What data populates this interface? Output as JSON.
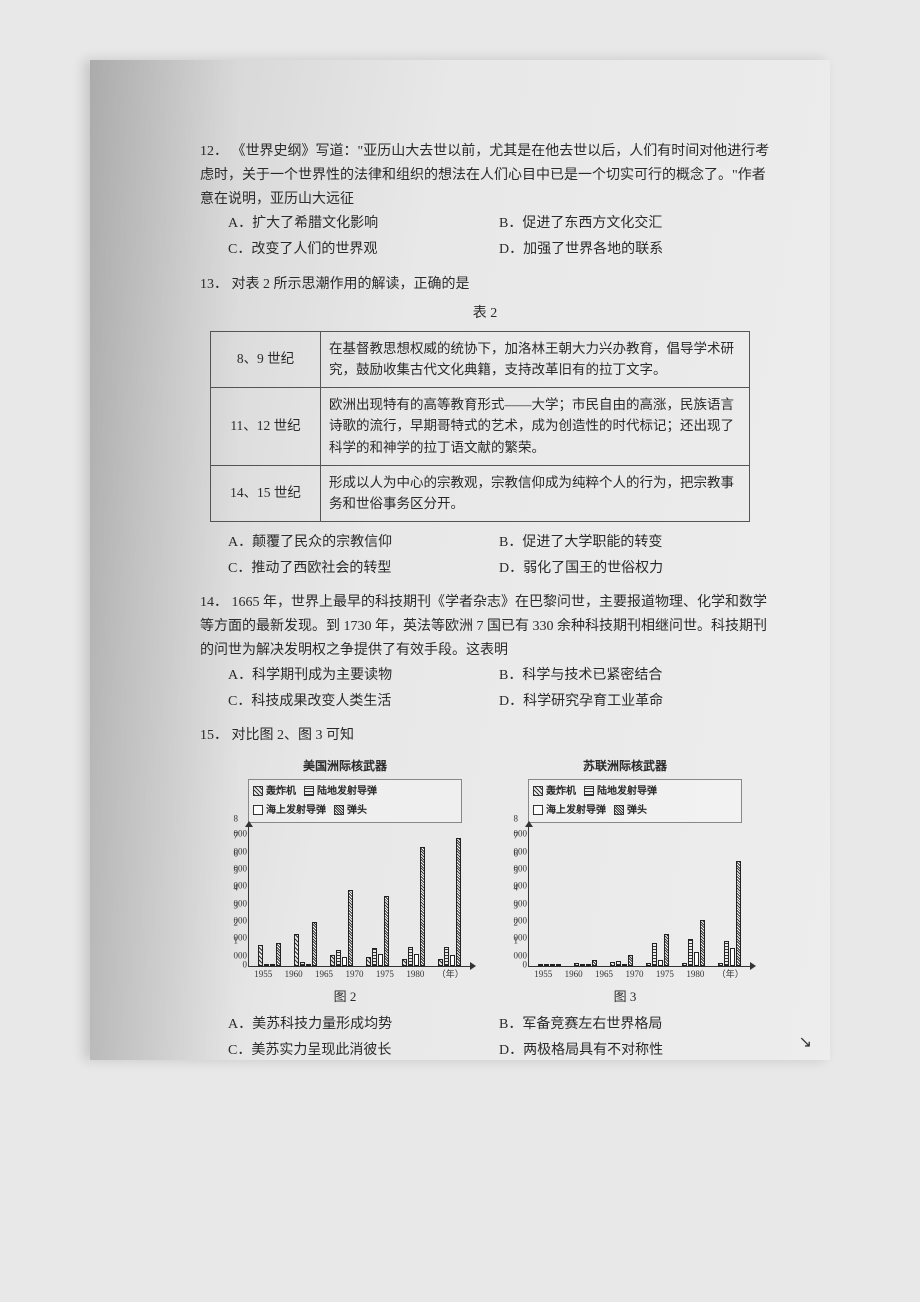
{
  "q12": {
    "num": "12．",
    "stem": "《世界史纲》写道：\"亚历山大去世以前，尤其是在他去世以后，人们有时间对他进行考虑时，关于一个世界性的法律和组织的想法在人们心目中已是一个切实可行的概念了。\"作者意在说明，亚历山大远征",
    "A": "A．扩大了希腊文化影响",
    "B": "B．促进了东西方文化交汇",
    "C": "C．改变了人们的世界观",
    "D": "D．加强了世界各地的联系"
  },
  "q13": {
    "num": "13．",
    "stem": "对表 2 所示思潮作用的解读，正确的是",
    "table_title": "表 2",
    "rows": [
      {
        "period": "8、9 世纪",
        "desc": "在基督教思想权威的统协下，加洛林王朝大力兴办教育，倡导学术研究，鼓励收集古代文化典籍，支持改革旧有的拉丁文字。"
      },
      {
        "period": "11、12 世纪",
        "desc": "欧洲出现特有的高等教育形式——大学；市民自由的高涨，民族语言诗歌的流行，早期哥特式的艺术，成为创造性的时代标记；还出现了科学的和神学的拉丁语文献的繁荣。"
      },
      {
        "period": "14、15 世纪",
        "desc": "形成以人为中心的宗教观，宗教信仰成为纯粹个人的行为，把宗教事务和世俗事务区分开。"
      }
    ],
    "A": "A．颠覆了民众的宗教信仰",
    "B": "B．促进了大学职能的转变",
    "C": "C．推动了西欧社会的转型",
    "D": "D．弱化了国王的世俗权力"
  },
  "q14": {
    "num": "14．",
    "stem": "1665 年，世界上最早的科技期刊《学者杂志》在巴黎问世，主要报道物理、化学和数学等方面的最新发现。到 1730 年，英法等欧洲 7 国已有 330 余种科技期刊相继问世。科技期刊的问世为解决发明权之争提供了有效手段。这表明",
    "A": "A．科学期刊成为主要读物",
    "B": "B．科学与技术已紧密结合",
    "C": "C．科技成果改变人类生活",
    "D": "D．科学研究孕育工业革命"
  },
  "q15": {
    "num": "15．",
    "stem": "对比图 2、图 3 可知",
    "A": "A．美苏科技力量形成均势",
    "B": "B．军备竞赛左右世界格局",
    "C": "C．美苏实力呈现此消彼长",
    "D": "D．两极格局具有不对称性",
    "legend": [
      "轰炸机",
      "陆地发射导弹",
      "海上发射导弹",
      "弹头"
    ],
    "x_unit": "（年）",
    "fig2_cap": "图 2",
    "fig3_cap": "图 3",
    "chart_us": {
      "title": "美国洲际核武器",
      "ymax": 8000,
      "yticks": [
        0,
        1000,
        2000,
        3000,
        4000,
        5000,
        6000,
        7000,
        8000
      ],
      "years": [
        "1955",
        "1960",
        "1965",
        "1970",
        "1975",
        "1980"
      ],
      "series": {
        "bomber": [
          1200,
          1800,
          600,
          500,
          400,
          350
        ],
        "land": [
          0,
          200,
          900,
          1000,
          1050,
          1050
        ],
        "sea": [
          0,
          100,
          500,
          650,
          650,
          600
        ],
        "warhead": [
          1300,
          2500,
          4300,
          4000,
          6800,
          7300
        ]
      }
    },
    "chart_ussr": {
      "title": "苏联洲际核武器",
      "ymax": 8000,
      "yticks": [
        0,
        1000,
        2000,
        3000,
        4000,
        5000,
        6000,
        7000,
        8000
      ],
      "years": [
        "1955",
        "1960",
        "1965",
        "1970",
        "1975",
        "1980"
      ],
      "series": {
        "bomber": [
          100,
          150,
          200,
          150,
          150,
          150
        ],
        "land": [
          0,
          50,
          250,
          1300,
          1500,
          1400
        ],
        "sea": [
          0,
          0,
          100,
          300,
          800,
          1000
        ],
        "warhead": [
          100,
          300,
          600,
          1800,
          2600,
          6000
        ]
      }
    }
  }
}
